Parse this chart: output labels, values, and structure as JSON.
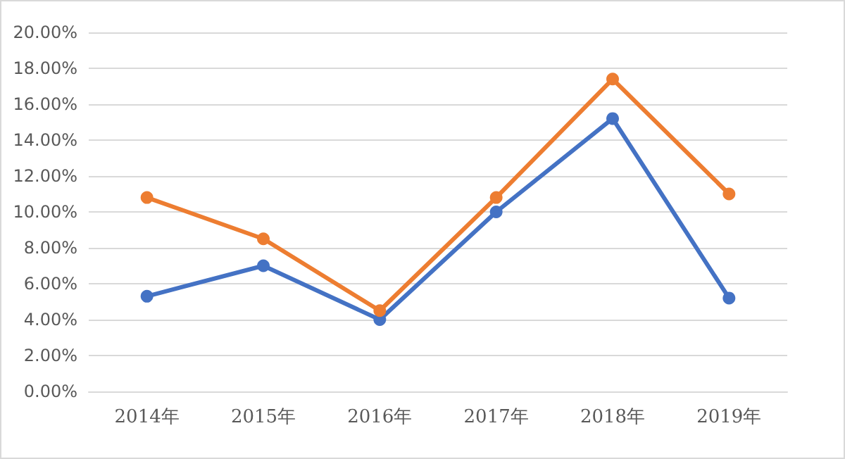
{
  "chart_data": {
    "type": "line",
    "categories": [
      "2014年",
      "2015年",
      "2016年",
      "2017年",
      "2018年",
      "2019年"
    ],
    "series": [
      {
        "color": "#4472c4",
        "values": [
          5.3,
          7.0,
          4.0,
          10.0,
          15.2,
          5.2
        ]
      },
      {
        "color": "#ed7d31",
        "values": [
          10.8,
          8.5,
          4.5,
          10.8,
          17.4,
          11.0
        ]
      }
    ],
    "ylim": [
      0,
      20
    ],
    "yticks": [
      {
        "value": 0,
        "label": "0.00%"
      },
      {
        "value": 2,
        "label": "2.00%"
      },
      {
        "value": 4,
        "label": "4.00%"
      },
      {
        "value": 6,
        "label": "6.00%"
      },
      {
        "value": 8,
        "label": "8.00%"
      },
      {
        "value": 10,
        "label": "10.00%"
      },
      {
        "value": 12,
        "label": "12.00%"
      },
      {
        "value": 14,
        "label": "14.00%"
      },
      {
        "value": 16,
        "label": "16.00%"
      },
      {
        "value": 18,
        "label": "18.00%"
      },
      {
        "value": 20,
        "label": "20.00%"
      }
    ],
    "grid": "y",
    "marker": "circle",
    "line_style": "solid"
  }
}
